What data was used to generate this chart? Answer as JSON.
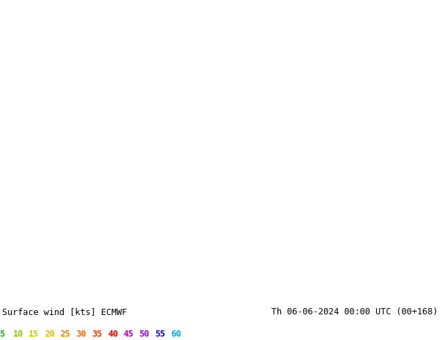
{
  "title_left": "Surface wind [kts] ECMWF",
  "title_right": "Th 06-06-2024 00:00 UTC (00+168)",
  "colorbar_values": [
    5,
    10,
    15,
    20,
    25,
    30,
    35,
    40,
    45,
    50,
    55,
    60
  ],
  "legend_label_colors": [
    "#00bb00",
    "#88cc00",
    "#cccc00",
    "#ddbb00",
    "#dd8800",
    "#ff6600",
    "#ff3300",
    "#ff0000",
    "#cc00aa",
    "#9900ff",
    "#0000ff",
    "#00aaff"
  ],
  "cmap_colors": [
    "#00dd00",
    "#aaff00",
    "#ffff00",
    "#ffee00",
    "#ffcc00",
    "#ff9900",
    "#ff6600",
    "#ff3300",
    "#cc00cc",
    "#9900ff",
    "#0000ff",
    "#00ccff"
  ],
  "bg_color": "#ffffff",
  "text_color": "#000000",
  "figsize": [
    6.34,
    4.9
  ],
  "dpi": 100,
  "font_size_labels": 9,
  "font_size_colorbar": 9,
  "lon_min": -128,
  "lon_max": -64,
  "lat_min": 22,
  "lat_max": 52
}
